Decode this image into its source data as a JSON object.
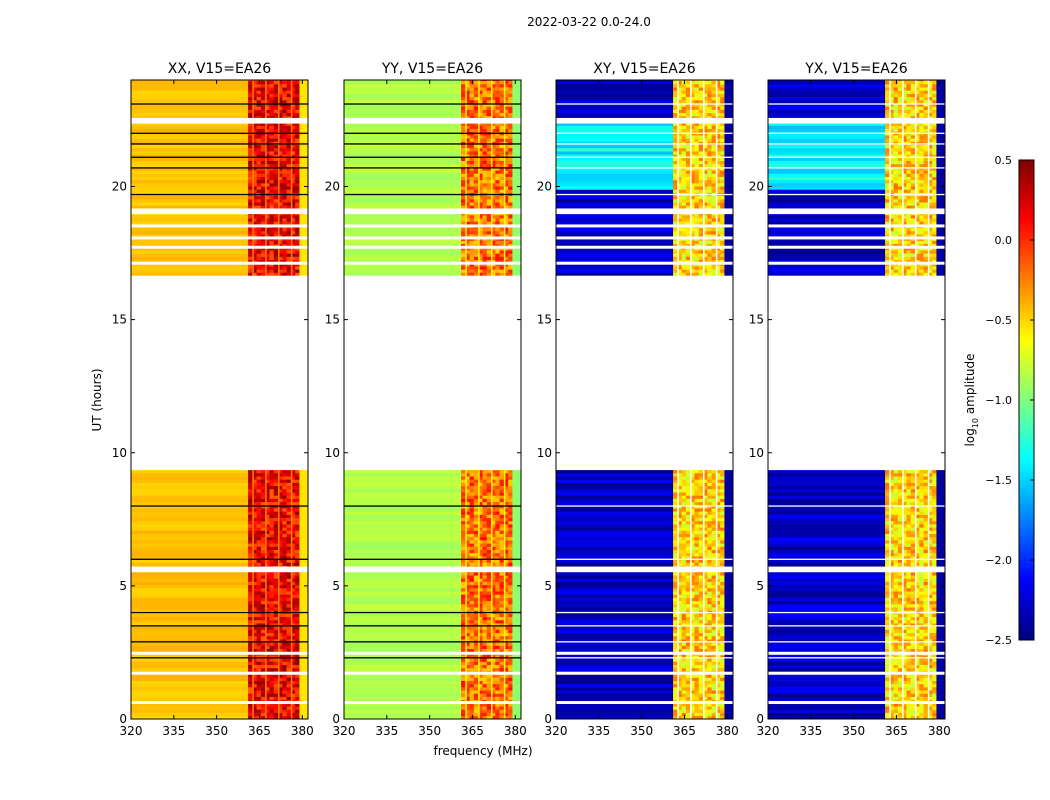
{
  "suptitle": "2022-03-22 0.0-24.0",
  "chart_data": {
    "type": "heatmap",
    "title": "2022-03-22 0.0-24.0",
    "xlabel": "frequency (MHz)",
    "ylabel": "UT (hours)",
    "xlim": [
      320,
      382
    ],
    "ylim": [
      0,
      24
    ],
    "xticks": [
      320,
      335,
      350,
      365,
      380
    ],
    "yticks": [
      0,
      5,
      10,
      15,
      20
    ],
    "colorbar": {
      "label": "log10 amplitude",
      "label_prefix": "log",
      "label_sub": "10",
      "label_suffix": " amplitude",
      "range": [
        -2.5,
        0.5
      ],
      "ticks": [
        "0.5",
        "0.0",
        "−0.5",
        "−1.0",
        "−1.5",
        "−2.0",
        "−2.5"
      ],
      "tick_values": [
        0.5,
        0.0,
        -0.5,
        -1.0,
        -1.5,
        -2.0,
        -2.5
      ],
      "colormap": "jet"
    },
    "data_time_ranges": [
      [
        0.0,
        9.35
      ],
      [
        16.65,
        24.0
      ]
    ],
    "rfi_band_mhz": [
      361,
      379
    ],
    "panels": [
      {
        "title": "XX, V15=EA26",
        "base_level": -0.45,
        "rfi_level": 0.15
      },
      {
        "title": "YY, V15=EA26",
        "base_level": -0.85,
        "rfi_level": -0.2
      },
      {
        "title": "XY, V15=EA26",
        "base_level": -2.3,
        "rfi_level": -0.5
      },
      {
        "title": "YX, V15=EA26",
        "base_level": -2.3,
        "rfi_level": -0.5
      }
    ],
    "colors": {
      "jet_stops": [
        "#00007f",
        "#0000ff",
        "#007fff",
        "#00ffff",
        "#7fff7f",
        "#ffff00",
        "#ff7f00",
        "#ff0000",
        "#7f0000"
      ]
    }
  }
}
